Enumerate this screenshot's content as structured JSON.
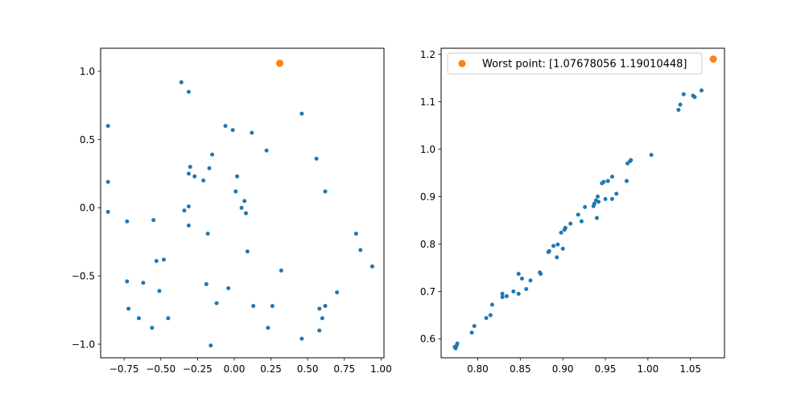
{
  "chart_data": [
    {
      "type": "scatter",
      "xlim": [
        -0.91,
        1.02
      ],
      "ylim": [
        -1.1,
        1.17
      ],
      "x_ticks": [
        {
          "value": -0.75,
          "label": "−0.75"
        },
        {
          "value": -0.5,
          "label": "−0.50"
        },
        {
          "value": -0.25,
          "label": "−0.25"
        },
        {
          "value": 0.0,
          "label": "0.00"
        },
        {
          "value": 0.25,
          "label": "0.25"
        },
        {
          "value": 0.5,
          "label": "0.50"
        },
        {
          "value": 0.75,
          "label": "0.75"
        },
        {
          "value": 1.0,
          "label": "1.00"
        }
      ],
      "y_ticks": [
        {
          "value": -1.0,
          "label": "−1.0"
        },
        {
          "value": -0.5,
          "label": "−0.5"
        },
        {
          "value": 0.0,
          "label": "0.0"
        },
        {
          "value": 0.5,
          "label": "0.5"
        },
        {
          "value": 1.0,
          "label": "1.0"
        }
      ],
      "grid": false,
      "series": [
        {
          "color": "#1f77b4",
          "points": [
            [
              -0.36,
              0.92
            ],
            [
              -0.31,
              0.85
            ],
            [
              -0.86,
              0.6
            ],
            [
              -0.06,
              0.6
            ],
            [
              -0.86,
              0.19
            ],
            [
              -0.86,
              -0.03
            ],
            [
              0.46,
              0.69
            ],
            [
              -0.01,
              0.57
            ],
            [
              0.12,
              0.55
            ],
            [
              0.22,
              0.42
            ],
            [
              -0.15,
              0.39
            ],
            [
              0.56,
              0.36
            ],
            [
              -0.3,
              0.3
            ],
            [
              -0.31,
              0.25
            ],
            [
              -0.27,
              0.23
            ],
            [
              -0.17,
              0.29
            ],
            [
              0.02,
              0.23
            ],
            [
              -0.21,
              0.2
            ],
            [
              0.01,
              0.12
            ],
            [
              0.62,
              0.12
            ],
            [
              0.07,
              0.05
            ],
            [
              -0.31,
              0.01
            ],
            [
              -0.34,
              -0.02
            ],
            [
              0.05,
              0.0
            ],
            [
              0.08,
              -0.04
            ],
            [
              -0.73,
              -0.1
            ],
            [
              -0.55,
              -0.09
            ],
            [
              -0.31,
              -0.13
            ],
            [
              -0.18,
              -0.19
            ],
            [
              0.83,
              -0.19
            ],
            [
              0.86,
              -0.31
            ],
            [
              0.09,
              -0.32
            ],
            [
              -0.48,
              -0.38
            ],
            [
              -0.53,
              -0.39
            ],
            [
              0.94,
              -0.43
            ],
            [
              0.32,
              -0.46
            ],
            [
              -0.73,
              -0.54
            ],
            [
              -0.62,
              -0.55
            ],
            [
              -0.19,
              -0.56
            ],
            [
              -0.04,
              -0.59
            ],
            [
              -0.51,
              -0.61
            ],
            [
              0.7,
              -0.62
            ],
            [
              -0.12,
              -0.7
            ],
            [
              0.13,
              -0.72
            ],
            [
              0.26,
              -0.72
            ],
            [
              0.62,
              -0.72
            ],
            [
              -0.72,
              -0.74
            ],
            [
              0.58,
              -0.74
            ],
            [
              -0.65,
              -0.81
            ],
            [
              -0.45,
              -0.81
            ],
            [
              0.6,
              -0.81
            ],
            [
              0.23,
              -0.88
            ],
            [
              -0.56,
              -0.88
            ],
            [
              0.58,
              -0.9
            ],
            [
              0.46,
              -0.96
            ],
            [
              -0.16,
              -1.01
            ]
          ]
        },
        {
          "color": "#ff7f0e",
          "points": [
            [
              0.31,
              1.06
            ]
          ]
        }
      ]
    },
    {
      "type": "scatter",
      "xlim": [
        0.757,
        1.09
      ],
      "ylim": [
        0.56,
        1.213
      ],
      "x_ticks": [
        {
          "value": 0.8,
          "label": "0.80"
        },
        {
          "value": 0.85,
          "label": "0.85"
        },
        {
          "value": 0.9,
          "label": "0.90"
        },
        {
          "value": 0.95,
          "label": "0.95"
        },
        {
          "value": 1.0,
          "label": "1.00"
        },
        {
          "value": 1.05,
          "label": "1.05"
        }
      ],
      "y_ticks": [
        {
          "value": 0.6,
          "label": "0.6"
        },
        {
          "value": 0.7,
          "label": "0.7"
        },
        {
          "value": 0.8,
          "label": "0.8"
        },
        {
          "value": 0.9,
          "label": "0.9"
        },
        {
          "value": 1.0,
          "label": "1.0"
        },
        {
          "value": 1.1,
          "label": "1.1"
        },
        {
          "value": 1.2,
          "label": "1.2"
        }
      ],
      "grid": false,
      "legend": {
        "placement": "top-left",
        "entries": [
          {
            "label": "Worst point: [1.07678056 1.19010448]",
            "color": "#ff7f0e"
          }
        ]
      },
      "series": [
        {
          "color": "#1f77b4",
          "points": [
            [
              0.774,
              0.58
            ],
            [
              0.775,
              0.585
            ],
            [
              0.776,
              0.59
            ],
            [
              0.773,
              0.583
            ],
            [
              0.793,
              0.613
            ],
            [
              0.796,
              0.627
            ],
            [
              0.81,
              0.644
            ],
            [
              0.815,
              0.65
            ],
            [
              0.817,
              0.672
            ],
            [
              0.829,
              0.688
            ],
            [
              0.829,
              0.695
            ],
            [
              0.834,
              0.69
            ],
            [
              0.842,
              0.7
            ],
            [
              0.848,
              0.737
            ],
            [
              0.848,
              0.695
            ],
            [
              0.852,
              0.727
            ],
            [
              0.857,
              0.705
            ],
            [
              0.862,
              0.723
            ],
            [
              0.873,
              0.74
            ],
            [
              0.874,
              0.737
            ],
            [
              0.883,
              0.783
            ],
            [
              0.884,
              0.785
            ],
            [
              0.889,
              0.796
            ],
            [
              0.893,
              0.772
            ],
            [
              0.894,
              0.799
            ],
            [
              0.898,
              0.824
            ],
            [
              0.9,
              0.79
            ],
            [
              0.902,
              0.83
            ],
            [
              0.903,
              0.834
            ],
            [
              0.909,
              0.843
            ],
            [
              0.918,
              0.862
            ],
            [
              0.922,
              0.848
            ],
            [
              0.926,
              0.878
            ],
            [
              0.936,
              0.88
            ],
            [
              0.937,
              0.885
            ],
            [
              0.939,
              0.892
            ],
            [
              0.94,
              0.855
            ],
            [
              0.941,
              0.9
            ],
            [
              0.942,
              0.889
            ],
            [
              0.946,
              0.928
            ],
            [
              0.948,
              0.931
            ],
            [
              0.95,
              0.895
            ],
            [
              0.953,
              0.933
            ],
            [
              0.958,
              0.895
            ],
            [
              0.958,
              0.942
            ],
            [
              0.963,
              0.906
            ],
            [
              0.975,
              0.933
            ],
            [
              0.976,
              0.97
            ],
            [
              0.979,
              0.975
            ],
            [
              0.98,
              0.977
            ],
            [
              1.004,
              0.988
            ],
            [
              1.036,
              1.083
            ],
            [
              1.038,
              1.094
            ],
            [
              1.042,
              1.116
            ],
            [
              1.053,
              1.113
            ],
            [
              1.055,
              1.11
            ],
            [
              1.063,
              1.124
            ]
          ]
        },
        {
          "color": "#ff7f0e",
          "points": [
            [
              1.07678056,
              1.19010448
            ]
          ]
        }
      ]
    }
  ]
}
